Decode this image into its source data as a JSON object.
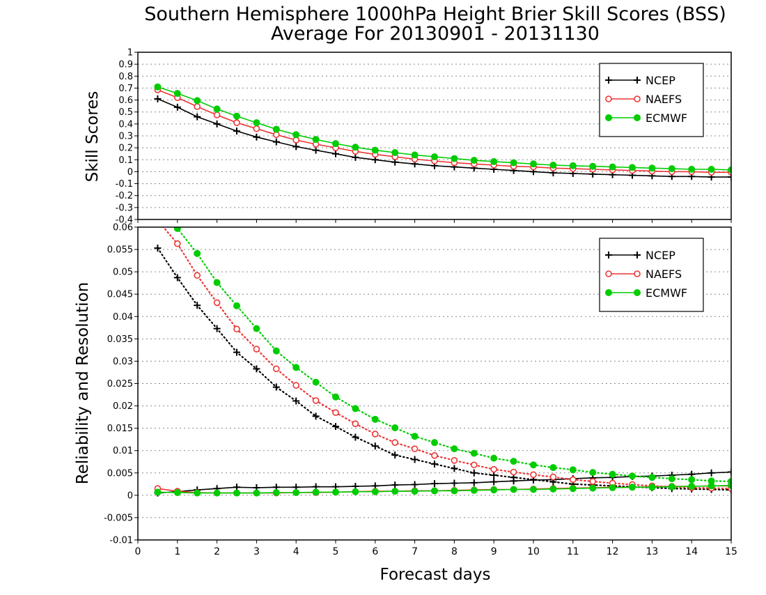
{
  "colors": {
    "NCEP": "#000000",
    "NAEFS": "#ee3333",
    "ECMWF": "#00cc00"
  },
  "chart_data": [
    {
      "type": "line",
      "title": "Southern Hemisphere 1000hPa Height Brier Skill Scores (BSS)",
      "subtitle": "Average For 20130901 - 20131130",
      "xlabel": "",
      "ylabel": "Skill Scores",
      "xlim": [
        0,
        15
      ],
      "ylim": [
        -0.4,
        1
      ],
      "yticks": [
        "1",
        "0.9",
        "0.8",
        "0.7",
        "0.6",
        "0.5",
        "0.4",
        "0.3",
        "0.2",
        "0.1",
        "0",
        "-0.1",
        "-0.2",
        "-0.3",
        "-0.4"
      ],
      "grid": true,
      "legend_position": "top-right",
      "x": [
        0.5,
        1,
        1.5,
        2,
        2.5,
        3,
        3.5,
        4,
        4.5,
        5,
        5.5,
        6,
        6.5,
        7,
        7.5,
        8,
        8.5,
        9,
        9.5,
        10,
        10.5,
        11,
        11.5,
        12,
        12.5,
        13,
        13.5,
        14,
        14.5,
        15
      ],
      "series": [
        {
          "name": "NCEP",
          "marker": "plus",
          "style": "solid",
          "values": [
            0.61,
            0.54,
            0.46,
            0.4,
            0.34,
            0.29,
            0.25,
            0.21,
            0.18,
            0.15,
            0.12,
            0.1,
            0.08,
            0.065,
            0.05,
            0.04,
            0.03,
            0.02,
            0.01,
            0.0,
            -0.01,
            -0.015,
            -0.02,
            -0.025,
            -0.03,
            -0.035,
            -0.04,
            -0.04,
            -0.045,
            -0.045
          ]
        },
        {
          "name": "NAEFS",
          "marker": "open-circle",
          "style": "solid",
          "values": [
            0.685,
            0.62,
            0.545,
            0.475,
            0.41,
            0.36,
            0.31,
            0.265,
            0.23,
            0.2,
            0.17,
            0.145,
            0.125,
            0.105,
            0.09,
            0.075,
            0.065,
            0.055,
            0.045,
            0.04,
            0.03,
            0.025,
            0.02,
            0.015,
            0.01,
            0.005,
            0.0,
            0.0,
            -0.005,
            -0.005
          ]
        },
        {
          "name": "ECMWF",
          "marker": "filled-circle",
          "style": "solid",
          "values": [
            0.71,
            0.655,
            0.595,
            0.525,
            0.465,
            0.41,
            0.355,
            0.31,
            0.27,
            0.235,
            0.205,
            0.18,
            0.16,
            0.14,
            0.125,
            0.11,
            0.095,
            0.085,
            0.075,
            0.065,
            0.055,
            0.05,
            0.045,
            0.04,
            0.035,
            0.03,
            0.025,
            0.02,
            0.02,
            0.015
          ]
        }
      ]
    },
    {
      "type": "line",
      "title": "",
      "xlabel": "Forecast days",
      "ylabel": "Reliability and Resolution",
      "xlim": [
        0,
        15
      ],
      "ylim": [
        -0.01,
        0.06
      ],
      "yticks": [
        "0.06",
        "0.055",
        "0.05",
        "0.045",
        "0.04",
        "0.035",
        "0.03",
        "0.025",
        "0.02",
        "0.015",
        "0.01",
        "0.005",
        "0",
        "-0.005",
        "-0.01"
      ],
      "xticks": [
        "0",
        "1",
        "2",
        "3",
        "4",
        "5",
        "6",
        "7",
        "8",
        "9",
        "10",
        "11",
        "12",
        "13",
        "14",
        "15"
      ],
      "grid": true,
      "legend_position": "top-right",
      "x": [
        0.5,
        1,
        1.5,
        2,
        2.5,
        3,
        3.5,
        4,
        4.5,
        5,
        5.5,
        6,
        6.5,
        7,
        7.5,
        8,
        8.5,
        9,
        9.5,
        10,
        10.5,
        11,
        11.5,
        12,
        12.5,
        13,
        13.5,
        14,
        14.5,
        15
      ],
      "series": [
        {
          "name": "NCEP",
          "group": "Reliability",
          "marker": "plus",
          "style": "solid",
          "values": [
            0.0005,
            0.0008,
            0.0012,
            0.0015,
            0.0018,
            0.0017,
            0.0018,
            0.0018,
            0.0019,
            0.0019,
            0.002,
            0.0021,
            0.0023,
            0.0024,
            0.0026,
            0.0027,
            0.0028,
            0.003,
            0.0032,
            0.0034,
            0.0035,
            0.0037,
            0.0039,
            0.004,
            0.0042,
            0.0043,
            0.0045,
            0.0047,
            0.005,
            0.0052
          ]
        },
        {
          "name": "NCEP",
          "group": "Resolution",
          "marker": "plus",
          "style": "dotted",
          "values": [
            0.0553,
            0.0487,
            0.0425,
            0.0373,
            0.032,
            0.0283,
            0.0242,
            0.0211,
            0.0177,
            0.0154,
            0.013,
            0.011,
            0.009,
            0.008,
            0.007,
            0.006,
            0.005,
            0.0045,
            0.004,
            0.0035,
            0.003,
            0.0025,
            0.0023,
            0.0021,
            0.0019,
            0.0017,
            0.0015,
            0.0014,
            0.0013,
            0.0012
          ]
        },
        {
          "name": "NAEFS",
          "group": "Reliability",
          "marker": "open-circle",
          "style": "solid",
          "values": [
            0.0015,
            0.0009,
            0.0006,
            0.0005,
            0.0005,
            0.0005,
            0.0005,
            0.0006,
            0.0006,
            0.0007,
            0.0008,
            0.0009,
            0.0009,
            0.001,
            0.001,
            0.0011,
            0.0012,
            0.0013,
            0.0013,
            0.0014,
            0.0015,
            0.0016,
            0.0017,
            0.0018,
            0.0018,
            0.0019,
            0.002,
            0.002,
            0.0021,
            0.0021
          ]
        },
        {
          "name": "NAEFS",
          "group": "Resolution",
          "marker": "open-circle",
          "style": "dotted",
          "values": [
            0.0615,
            0.0563,
            0.0492,
            0.0431,
            0.0372,
            0.0327,
            0.0283,
            0.0246,
            0.0212,
            0.0185,
            0.016,
            0.0137,
            0.0118,
            0.0104,
            0.0089,
            0.0078,
            0.0068,
            0.0058,
            0.0052,
            0.0046,
            0.0041,
            0.0035,
            0.0031,
            0.0027,
            0.0024,
            0.0021,
            0.0019,
            0.0017,
            0.0016,
            0.0015
          ]
        },
        {
          "name": "ECMWF",
          "group": "Reliability",
          "marker": "filled-circle",
          "style": "solid",
          "values": [
            0.0007,
            0.0006,
            0.0005,
            0.0005,
            0.0005,
            0.0005,
            0.0006,
            0.0006,
            0.0007,
            0.0007,
            0.0008,
            0.0008,
            0.0009,
            0.0009,
            0.001,
            0.001,
            0.0011,
            0.0012,
            0.0013,
            0.0013,
            0.0014,
            0.0015,
            0.0016,
            0.0017,
            0.0018,
            0.0018,
            0.0019,
            0.002,
            0.0021,
            0.0022
          ]
        },
        {
          "name": "ECMWF",
          "group": "Resolution",
          "marker": "filled-circle",
          "style": "dotted",
          "values": [
            0.0653,
            0.0597,
            0.0541,
            0.0476,
            0.0424,
            0.0373,
            0.0323,
            0.0286,
            0.0253,
            0.022,
            0.0194,
            0.017,
            0.0151,
            0.0132,
            0.0118,
            0.0104,
            0.0094,
            0.0083,
            0.0076,
            0.0068,
            0.0062,
            0.0057,
            0.0051,
            0.0047,
            0.0043,
            0.004,
            0.0037,
            0.0035,
            0.0032,
            0.0031
          ]
        }
      ]
    }
  ]
}
